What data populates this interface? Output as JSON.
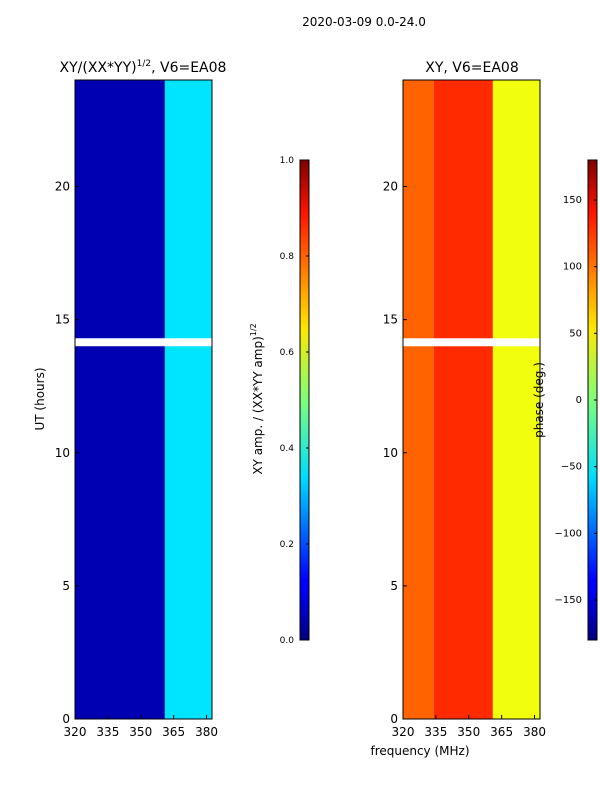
{
  "figure": {
    "suptitle": "2020-03-09 0.0-24.0",
    "xlabel": "frequency (MHz)"
  },
  "chart_data": [
    {
      "type": "heatmap",
      "title_main": "XY/(XX*YY)",
      "title_exp": "1/2",
      "title_tail": ", V6=EA08",
      "xlabel": "",
      "ylabel": "UT (hours)",
      "xlim": [
        320,
        382.5
      ],
      "ylim": [
        0,
        24
      ],
      "xticks": [
        320,
        335,
        350,
        365,
        380
      ],
      "yticks": [
        0,
        5,
        10,
        15,
        20
      ],
      "colorbar": {
        "label_main": "XY amp. / (XX*YY amp)",
        "label_exp": "1/2",
        "range": [
          0.0,
          1.0
        ],
        "ticks": [
          "0.0",
          "0.2",
          "0.4",
          "0.6",
          "0.8",
          "1.0"
        ],
        "tick_values": [
          0.0,
          0.2,
          0.4,
          0.6,
          0.8,
          1.0
        ],
        "colormap": "jet"
      },
      "gap_hours": [
        [
          14.0,
          14.3
        ]
      ],
      "bands": [
        {
          "from_mhz": 320,
          "to_mhz": 361,
          "value": 0.05
        },
        {
          "from_mhz": 361,
          "to_mhz": 382.5,
          "value": 0.35
        }
      ]
    },
    {
      "type": "heatmap",
      "title_main": "XY, V6=EA08",
      "xlabel": "",
      "ylabel": "",
      "xlim": [
        320,
        382.5
      ],
      "ylim": [
        0,
        24
      ],
      "xticks": [
        320,
        335,
        350,
        365,
        380
      ],
      "yticks": [
        0,
        5,
        10,
        15,
        20
      ],
      "colorbar": {
        "label_main": "phase (deg.)",
        "range": [
          -180,
          180
        ],
        "ticks": [
          "−150",
          "−100",
          "−50",
          "0",
          "50",
          "100",
          "150"
        ],
        "tick_values": [
          -150,
          -100,
          -50,
          0,
          50,
          100,
          150
        ],
        "colormap": "jet"
      },
      "gap_hours": [
        [
          14.0,
          14.3
        ]
      ],
      "bands": [
        {
          "from_mhz": 320,
          "to_mhz": 334,
          "value": 100
        },
        {
          "from_mhz": 334,
          "to_mhz": 361,
          "value": 120
        },
        {
          "from_mhz": 361,
          "to_mhz": 382.5,
          "value": 40
        }
      ]
    }
  ],
  "colors": {
    "background": "#ffffff",
    "gap": "#ffffff",
    "axis": "#000000"
  }
}
